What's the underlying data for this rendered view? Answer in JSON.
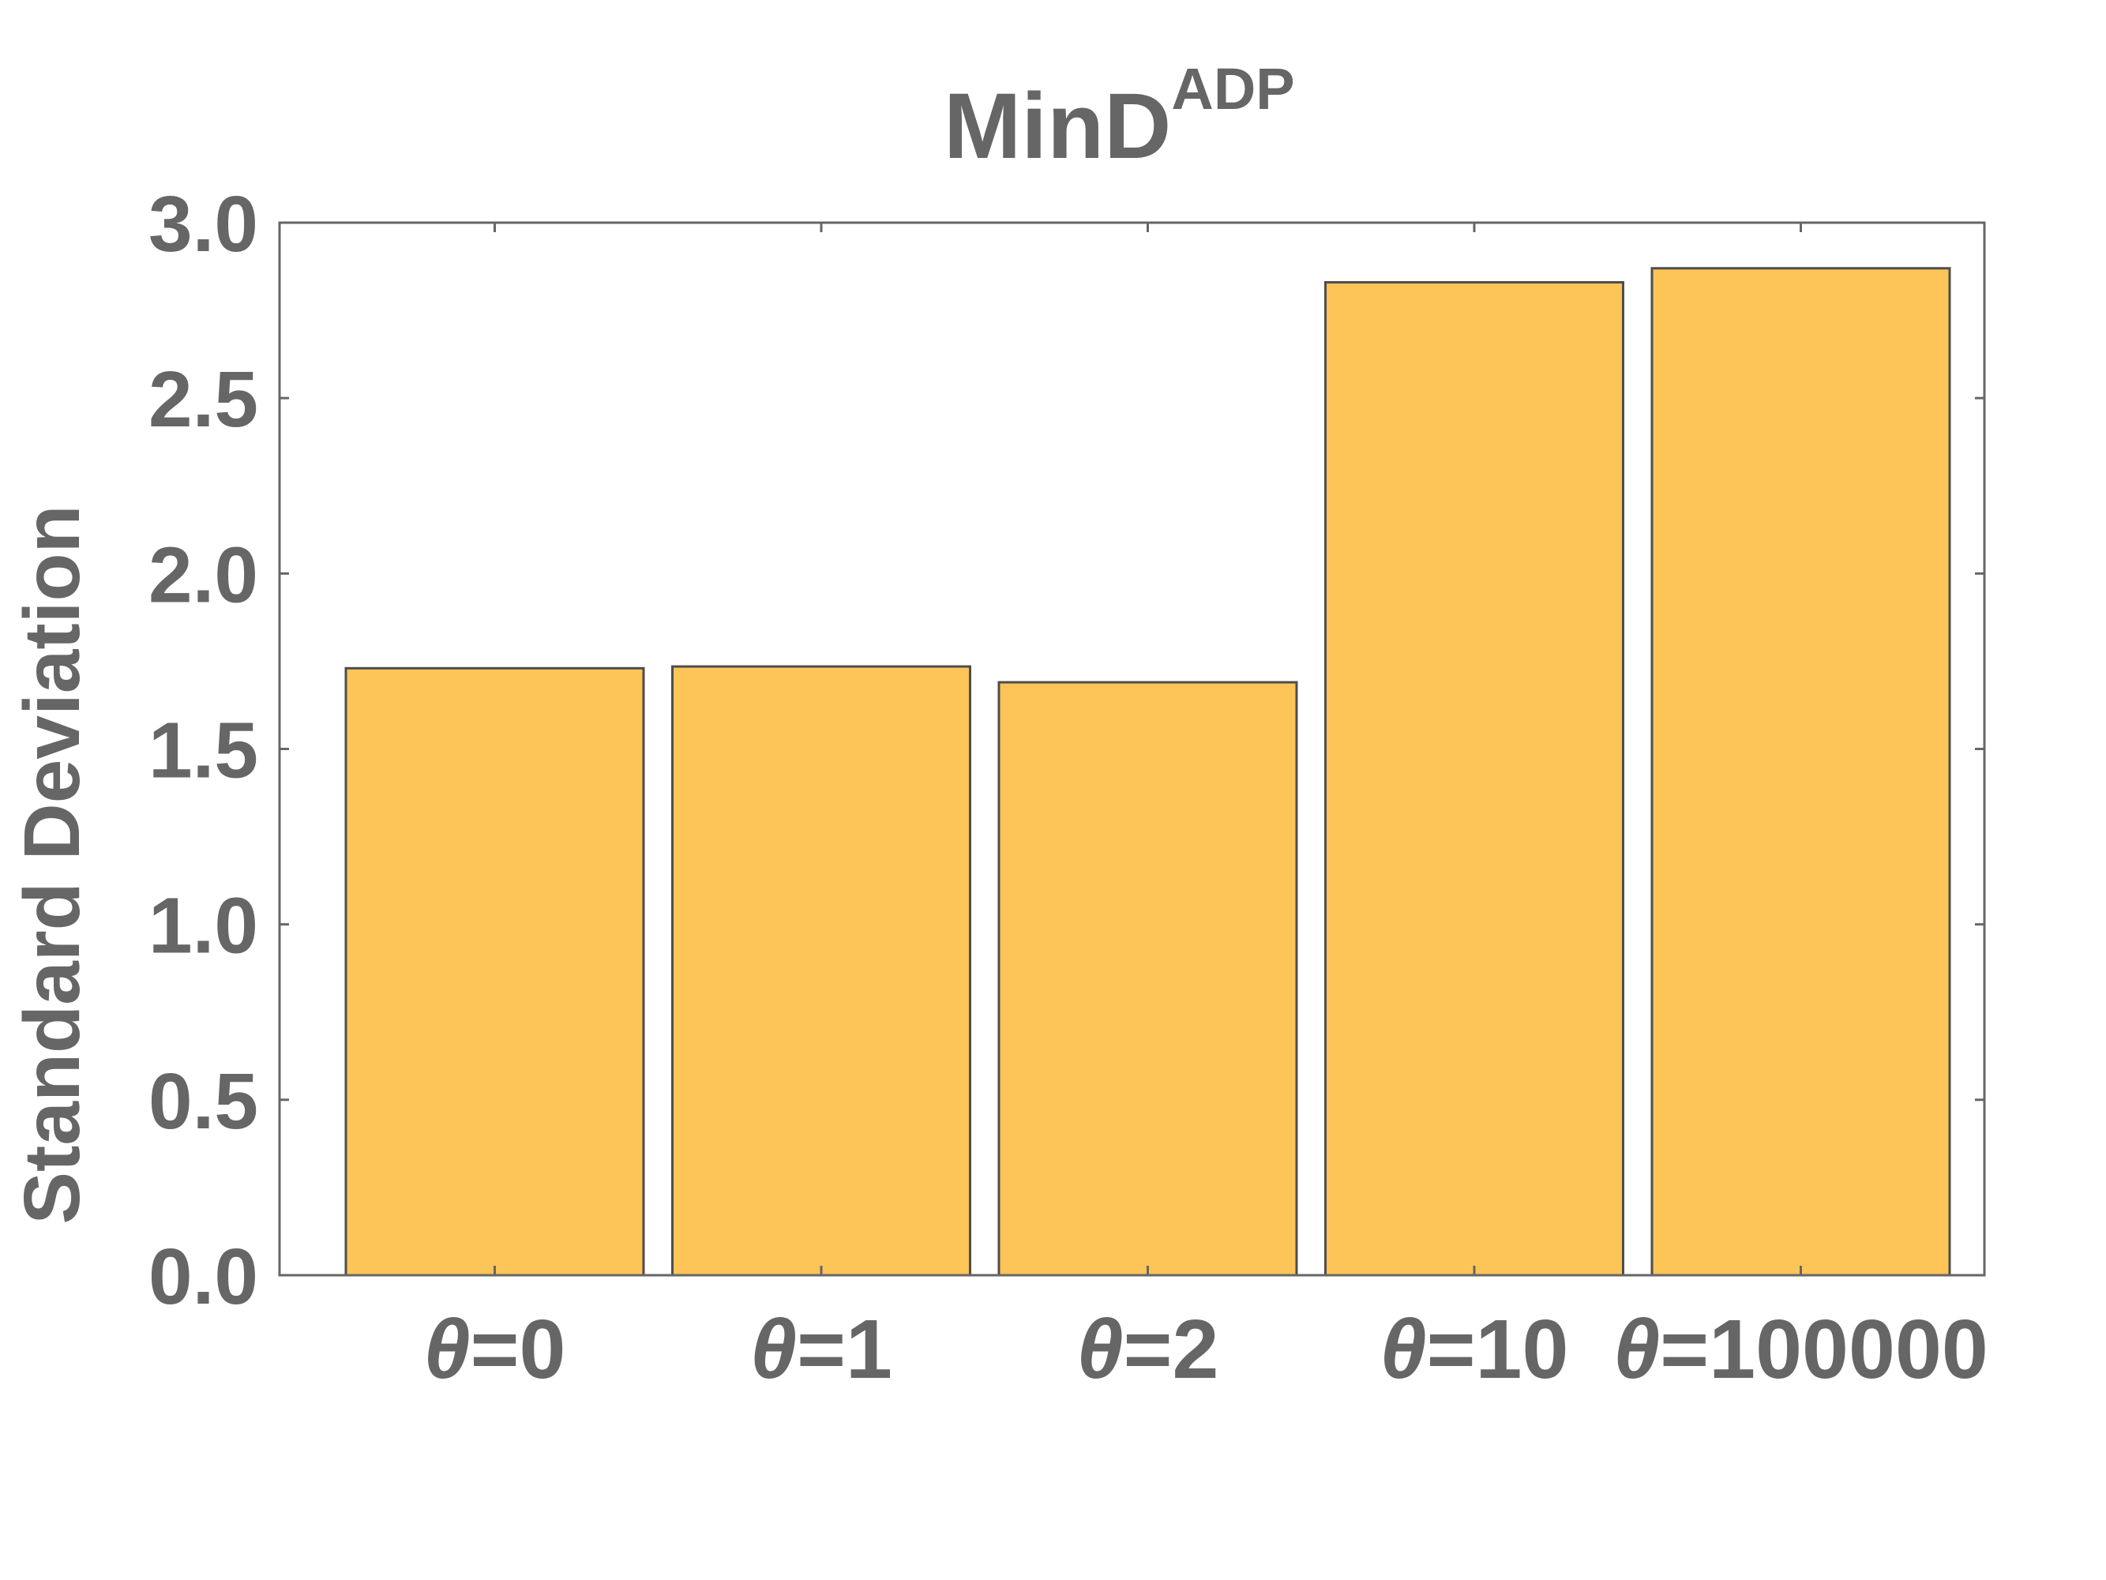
{
  "chart_data": {
    "type": "bar",
    "title": "MinD",
    "title_superscript": "ADP",
    "xlabel": "",
    "ylabel": "Standard Deviation",
    "categories": [
      {
        "symbol": "θ",
        "text": "=0"
      },
      {
        "symbol": "θ",
        "text": "=1"
      },
      {
        "symbol": "θ",
        "text": "=2"
      },
      {
        "symbol": "θ",
        "text": "=10"
      },
      {
        "symbol": "θ",
        "text": "=100000"
      }
    ],
    "values": [
      1.73,
      1.735,
      1.69,
      2.83,
      2.87
    ],
    "ylim": [
      0,
      3.0
    ],
    "yticks": [
      "0.0",
      "0.5",
      "1.0",
      "1.5",
      "2.0",
      "2.5",
      "3.0"
    ],
    "grid": false,
    "legend": "none",
    "colors": {
      "bar_fill": "#FDC457",
      "bar_stroke": "#4d4d4d",
      "frame": "#666666",
      "text": "#666666"
    }
  }
}
